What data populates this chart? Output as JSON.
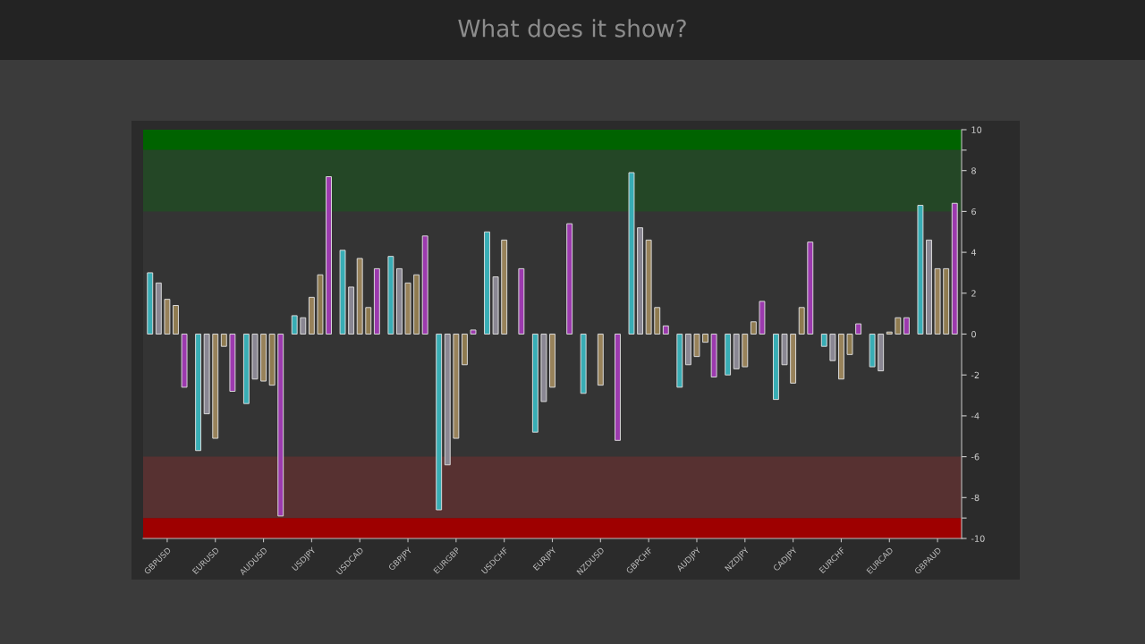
{
  "chart_data": {
    "type": "bar",
    "title": "What does it show?",
    "categories": [
      "GBPUSD",
      "EURUSD",
      "AUDUSD",
      "USDJPY",
      "USDCAD",
      "GBPJPY",
      "EURGBP",
      "USDCHF",
      "EURJPY",
      "NZDUSD",
      "GBPCHF",
      "AUDJPY",
      "NZDJPY",
      "CADJPY",
      "EURCHF",
      "EURCAD",
      "GBPAUD"
    ],
    "series": [
      {
        "color": "#38adb5",
        "values": [
          3.0,
          -5.7,
          -3.4,
          0.9,
          4.1,
          3.8,
          -8.6,
          5.0,
          -4.8,
          -2.9,
          7.9,
          -2.6,
          -2.0,
          -3.2,
          -0.6,
          -1.6,
          6.3
        ]
      },
      {
        "color": "#8a8793",
        "values": [
          2.5,
          -3.9,
          -2.2,
          0.8,
          2.3,
          3.2,
          -6.4,
          2.8,
          -3.3,
          null,
          5.2,
          -1.5,
          -1.7,
          -1.5,
          -1.3,
          -1.8,
          4.6
        ]
      },
      {
        "color": "#98825a",
        "values": [
          1.7,
          -5.1,
          -2.3,
          1.8,
          3.7,
          2.5,
          -5.1,
          4.6,
          -2.6,
          -2.5,
          4.6,
          -1.1,
          -1.6,
          -2.4,
          -2.2,
          0.1,
          3.2
        ]
      },
      {
        "color": "#8f7b50",
        "values": [
          1.4,
          -0.6,
          -2.5,
          2.9,
          1.3,
          2.9,
          -1.5,
          null,
          null,
          null,
          1.3,
          -0.4,
          0.6,
          1.3,
          -1.0,
          0.8,
          3.2
        ]
      },
      {
        "color": "#9c3aae",
        "values": [
          -2.6,
          -2.8,
          -8.9,
          7.7,
          3.2,
          4.8,
          0.2,
          3.2,
          5.4,
          -5.2,
          0.4,
          -2.1,
          1.6,
          4.5,
          0.5,
          0.8,
          6.4
        ]
      }
    ],
    "ylim": [
      -10,
      10
    ],
    "yticks": [
      -10,
      {
        "value": -9,
        "label": null
      },
      -8,
      -6,
      -4,
      -2,
      0,
      2,
      4,
      6,
      8,
      {
        "value": 9,
        "label": null
      },
      10
    ],
    "bands": [
      {
        "axis": "y",
        "from": 9,
        "to": 10,
        "color": "#006300"
      },
      {
        "axis": "y",
        "from": 6,
        "to": 9,
        "color": "#244726"
      },
      {
        "axis": "y",
        "from": -9,
        "to": -6,
        "color": "#573131"
      },
      {
        "axis": "y",
        "from": -10,
        "to": -9,
        "color": "#9e0000"
      }
    ]
  }
}
